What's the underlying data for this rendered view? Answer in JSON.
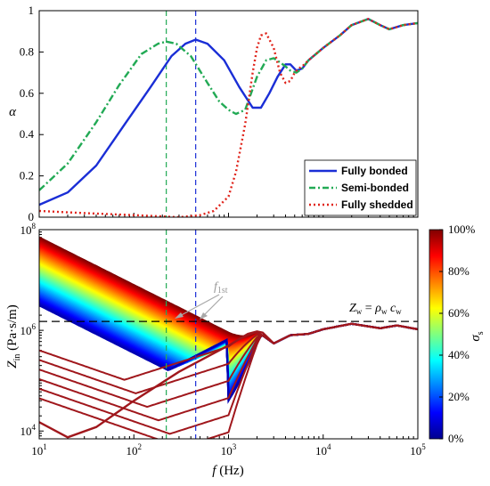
{
  "chart_data": [
    {
      "type": "line",
      "ylabel": "α",
      "xscale": "log",
      "xlim": [
        10,
        100000
      ],
      "ylim": [
        0,
        1
      ],
      "y_ticks": [
        "0",
        "0.2",
        "0.4",
        "0.6",
        "0.8",
        "1"
      ],
      "legend_position": "bottom-right",
      "vlines": [
        {
          "x": 220,
          "color": "#22aa55"
        },
        {
          "x": 450,
          "color": "#1a2ed6"
        }
      ],
      "series": [
        {
          "name": "Fully bonded",
          "color": "#1a2ed6",
          "style": "solid",
          "x": [
            10,
            20,
            40,
            80,
            150,
            250,
            350,
            450,
            600,
            900,
            1300,
            1800,
            2200,
            2700,
            3300,
            4000,
            4500,
            5200,
            6000,
            7000,
            10000,
            15000,
            20000,
            30000,
            40000,
            50000,
            70000,
            100000
          ],
          "y": [
            0.06,
            0.12,
            0.25,
            0.45,
            0.63,
            0.78,
            0.84,
            0.86,
            0.84,
            0.76,
            0.63,
            0.53,
            0.53,
            0.6,
            0.68,
            0.74,
            0.74,
            0.71,
            0.72,
            0.76,
            0.82,
            0.88,
            0.93,
            0.96,
            0.93,
            0.91,
            0.93,
            0.94
          ]
        },
        {
          "name": "Semi-bonded",
          "color": "#22aa55",
          "style": "dashdot",
          "x": [
            10,
            20,
            40,
            70,
            120,
            180,
            220,
            280,
            400,
            600,
            800,
            1000,
            1200,
            1500,
            2000,
            2500,
            3000,
            3500,
            4000,
            4500,
            5200,
            6000,
            7000,
            10000,
            15000,
            20000,
            30000,
            40000,
            50000,
            70000,
            100000
          ],
          "y": [
            0.13,
            0.26,
            0.46,
            0.64,
            0.79,
            0.84,
            0.85,
            0.84,
            0.78,
            0.65,
            0.56,
            0.52,
            0.5,
            0.52,
            0.68,
            0.76,
            0.77,
            0.75,
            0.73,
            0.71,
            0.7,
            0.72,
            0.76,
            0.82,
            0.88,
            0.93,
            0.96,
            0.93,
            0.91,
            0.93,
            0.94
          ]
        },
        {
          "name": "Fully shedded",
          "color": "#e0241b",
          "style": "dotted",
          "x": [
            10,
            30,
            100,
            300,
            500,
            700,
            1000,
            1200,
            1500,
            1800,
            2000,
            2200,
            2500,
            3000,
            3500,
            4000,
            4500,
            5000,
            5500,
            6000,
            7000,
            10000,
            15000,
            20000,
            30000,
            40000,
            50000,
            70000,
            100000
          ],
          "y": [
            0.03,
            0.02,
            0.01,
            0.0,
            0.01,
            0.03,
            0.1,
            0.22,
            0.45,
            0.7,
            0.82,
            0.88,
            0.89,
            0.82,
            0.7,
            0.65,
            0.66,
            0.7,
            0.72,
            0.73,
            0.76,
            0.82,
            0.88,
            0.93,
            0.96,
            0.93,
            0.91,
            0.93,
            0.94
          ]
        }
      ]
    },
    {
      "type": "line",
      "xlabel": "f (Hz)",
      "ylabel": "Z_in (Pa·s/m)",
      "xscale": "log",
      "yscale": "log",
      "xlim": [
        10,
        100000
      ],
      "ylim": [
        7000,
        100000000
      ],
      "x_ticks": [
        {
          "base": "10",
          "exp": "1"
        },
        {
          "base": "10",
          "exp": "2"
        },
        {
          "base": "10",
          "exp": "3"
        },
        {
          "base": "10",
          "exp": "4"
        },
        {
          "base": "10",
          "exp": "5"
        }
      ],
      "y_ticks": [
        {
          "value": 10000,
          "base": "10",
          "exp": "4"
        },
        {
          "value": 1000000,
          "base": "10",
          "exp": "6"
        },
        {
          "value": 100000000,
          "base": "10",
          "exp": "8"
        }
      ],
      "hline": {
        "y": 1500000,
        "label": "Z_w = ρ_w c_w"
      },
      "annotation": "f_1st",
      "colorbar": {
        "label": "σ_s",
        "range": [
          0,
          100
        ],
        "ticks": [
          "0%",
          "20%",
          "40%",
          "60%",
          "80%",
          "100%"
        ],
        "colormap": "jet"
      },
      "family": {
        "count": 60,
        "top_line": {
          "x": [
            10,
            1000
          ],
          "y": [
            70000000,
            900000
          ]
        },
        "band_bottom": {
          "x": [
            100,
            300,
            1000
          ],
          "y": [
            80000,
            200000,
            500000
          ]
        },
        "merge": {
          "x": [
            2000,
            3000,
            4500,
            7000,
            10000,
            20000,
            40000,
            60000,
            100000
          ],
          "y": [
            950000,
            550000,
            800000,
            850000,
            1050000,
            1350000,
            1100000,
            1250000,
            1050000
          ]
        }
      },
      "series": [
        {
          "color": "#a0171c",
          "x": [
            10,
            20,
            40,
            100,
            300,
            1000,
            1600,
            2000,
            2300,
            3000,
            4500,
            7000,
            10000,
            20000,
            40000,
            60000,
            100000
          ],
          "y": [
            15000,
            7500,
            12000,
            40000,
            150000,
            500000,
            850000,
            950000,
            900000,
            550000,
            800000,
            850000,
            1050000,
            1350000,
            1100000,
            1250000,
            1050000
          ]
        }
      ]
    }
  ]
}
